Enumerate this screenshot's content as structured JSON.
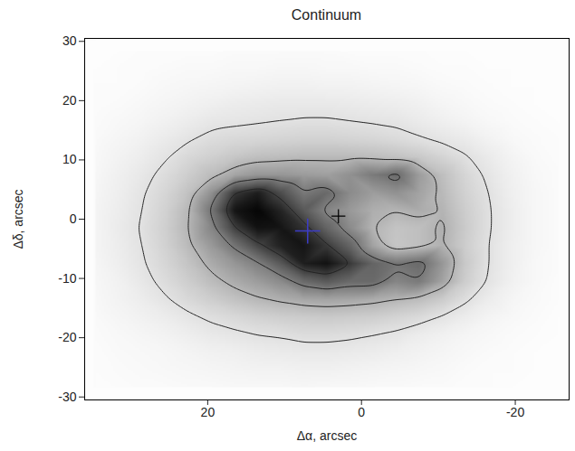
{
  "chart_data": {
    "type": "heatmap",
    "title": "Continuum",
    "x_label": "Δα, arcsec",
    "y_label": "Δδ, arcsec",
    "xlim": [
      36,
      -27
    ],
    "ylim": [
      -30.5,
      30.5
    ],
    "xticks": [
      20,
      0,
      -20
    ],
    "yticks": [
      -30,
      -20,
      -10,
      0,
      10,
      20,
      30
    ],
    "color": "Greys",
    "zlim": [
      0,
      10
    ],
    "contour_levels": [
      2,
      4,
      6,
      8
    ],
    "cells": {
      "x": [
        34.5,
        31.5,
        28.5,
        25.5,
        22.5,
        19.5,
        16.5,
        13.5,
        10.5,
        7.5,
        4.5,
        1.5,
        -1.5,
        -4.5,
        -7.5,
        -10.5,
        -13.5,
        -16.5,
        -19.5,
        -22.5,
        -25.5
      ],
      "y": [
        28.5,
        25.5,
        22.5,
        19.5,
        16.5,
        13.5,
        10.5,
        7.5,
        4.5,
        1.5,
        -1.5,
        -4.5,
        -7.5,
        -10.5,
        -13.5,
        -16.5,
        -19.5,
        -22.5,
        -25.5,
        -28.5
      ],
      "values": [
        [
          0.2,
          0.2,
          0.3,
          0.3,
          0.3,
          0.3,
          0.4,
          0.4,
          0.4,
          0.4,
          0.4,
          0.3,
          0.3,
          0.3,
          0.3,
          0.2,
          0.2,
          0.2,
          0.2,
          0.2,
          0.2
        ],
        [
          0.2,
          0.3,
          0.3,
          0.4,
          0.5,
          0.5,
          0.6,
          0.6,
          0.7,
          0.7,
          0.6,
          0.6,
          0.5,
          0.5,
          0.4,
          0.3,
          0.3,
          0.2,
          0.2,
          0.2,
          0.2
        ],
        [
          0.3,
          0.3,
          0.4,
          0.6,
          0.7,
          0.8,
          0.9,
          1.0,
          1.1,
          1.1,
          1.0,
          1.0,
          0.9,
          0.8,
          0.7,
          0.5,
          0.4,
          0.3,
          0.2,
          0.2,
          0.2
        ],
        [
          0.3,
          0.4,
          0.6,
          0.8,
          1.0,
          1.2,
          1.4,
          1.5,
          1.6,
          1.6,
          1.6,
          1.5,
          1.4,
          1.3,
          1.1,
          0.8,
          0.6,
          0.4,
          0.3,
          0.2,
          0.2
        ],
        [
          0.4,
          0.6,
          0.8,
          1.1,
          1.4,
          1.7,
          1.8,
          1.9,
          2.0,
          2.1,
          2.1,
          2.0,
          1.9,
          1.8,
          1.5,
          1.2,
          0.9,
          0.6,
          0.4,
          0.3,
          0.2
        ],
        [
          0.5,
          0.8,
          1.1,
          1.5,
          1.9,
          2.3,
          2.5,
          2.6,
          2.7,
          2.8,
          2.8,
          2.7,
          2.6,
          2.4,
          2.1,
          1.8,
          1.5,
          1.0,
          0.6,
          0.4,
          0.3
        ],
        [
          0.6,
          1.0,
          1.4,
          1.9,
          2.5,
          2.9,
          3.3,
          3.6,
          3.7,
          3.8,
          3.8,
          3.8,
          3.7,
          3.5,
          3.2,
          2.7,
          2.1,
          1.5,
          0.9,
          0.5,
          0.3
        ],
        [
          0.7,
          1.2,
          1.7,
          2.3,
          3.0,
          3.7,
          4.5,
          5.0,
          5.0,
          4.8,
          4.7,
          5.2,
          6.0,
          6.6,
          4.8,
          3.6,
          2.6,
          1.8,
          1.1,
          0.6,
          0.4
        ],
        [
          0.8,
          1.3,
          1.9,
          2.6,
          3.5,
          5.2,
          8.2,
          9.0,
          7.6,
          6.0,
          6.6,
          5.4,
          4.8,
          5.2,
          4.6,
          3.8,
          2.8,
          2.0,
          1.2,
          0.7,
          0.4
        ],
        [
          0.9,
          1.4,
          2.0,
          2.8,
          3.9,
          6.2,
          9.3,
          9.8,
          8.8,
          7.2,
          5.6,
          4.9,
          4.2,
          4.0,
          4.3,
          4.0,
          3.0,
          2.1,
          1.3,
          0.7,
          0.4
        ],
        [
          0.9,
          1.5,
          2.1,
          2.9,
          4.0,
          5.6,
          8.0,
          9.4,
          9.3,
          8.4,
          6.8,
          5.4,
          4.0,
          3.4,
          3.6,
          4.2,
          3.1,
          2.1,
          1.3,
          0.7,
          0.4
        ],
        [
          0.9,
          1.4,
          2.0,
          2.8,
          3.8,
          4.9,
          6.2,
          7.8,
          8.9,
          9.3,
          8.2,
          6.8,
          4.6,
          3.3,
          3.6,
          4.1,
          3.0,
          2.0,
          1.2,
          0.7,
          0.4
        ],
        [
          0.8,
          1.3,
          1.9,
          2.6,
          3.4,
          4.3,
          5.0,
          5.8,
          7.2,
          9.0,
          9.4,
          8.2,
          6.8,
          6.2,
          6.6,
          5.0,
          3.2,
          2.0,
          1.2,
          0.6,
          0.4
        ],
        [
          0.7,
          1.1,
          1.7,
          2.3,
          3.0,
          3.7,
          4.3,
          4.8,
          5.4,
          6.6,
          7.2,
          6.6,
          6.6,
          5.6,
          6.0,
          4.6,
          3.0,
          1.9,
          1.1,
          0.6,
          0.3
        ],
        [
          0.6,
          1.0,
          1.4,
          1.9,
          2.5,
          3.0,
          3.5,
          3.9,
          4.2,
          4.5,
          4.6,
          4.5,
          4.3,
          4.0,
          3.7,
          3.1,
          2.2,
          1.4,
          0.8,
          0.5,
          0.3
        ],
        [
          0.5,
          0.8,
          1.1,
          1.4,
          1.8,
          2.2,
          2.5,
          2.8,
          3.0,
          3.1,
          3.2,
          3.1,
          3.0,
          2.7,
          2.4,
          1.9,
          1.4,
          0.9,
          0.6,
          0.4,
          0.2
        ],
        [
          0.4,
          0.6,
          0.8,
          1.0,
          1.3,
          1.6,
          1.8,
          2.0,
          2.1,
          2.3,
          2.3,
          2.2,
          2.0,
          1.8,
          1.4,
          1.1,
          0.8,
          0.6,
          0.4,
          0.3,
          0.2
        ],
        [
          0.3,
          0.5,
          0.6,
          0.7,
          0.9,
          1.1,
          1.2,
          1.4,
          1.5,
          1.6,
          1.6,
          1.5,
          1.4,
          1.2,
          1.0,
          0.8,
          0.6,
          0.4,
          0.3,
          0.2,
          0.2
        ],
        [
          0.3,
          0.4,
          0.5,
          0.6,
          0.7,
          0.8,
          0.9,
          1.0,
          1.0,
          1.1,
          1.1,
          1.0,
          0.9,
          0.8,
          0.7,
          0.6,
          0.4,
          0.3,
          0.3,
          0.2,
          0.2
        ],
        [
          0.2,
          0.3,
          0.4,
          0.4,
          0.5,
          0.5,
          0.6,
          0.6,
          0.6,
          0.7,
          0.6,
          0.6,
          0.5,
          0.5,
          0.4,
          0.4,
          0.3,
          0.3,
          0.2,
          0.2,
          0.2
        ]
      ]
    },
    "markers": [
      {
        "x": 7,
        "y": -2,
        "color": "#3c3cc8",
        "marker": "plus"
      },
      {
        "x": 3,
        "y": 0.5,
        "color": "#000000",
        "marker": "plus"
      }
    ]
  }
}
